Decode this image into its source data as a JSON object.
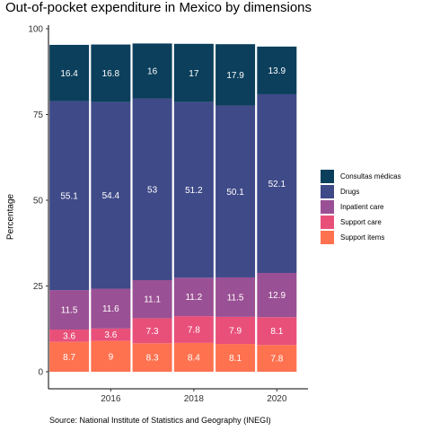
{
  "chart_data": {
    "type": "bar",
    "stacked": true,
    "title": "Out-of-pocket expenditure in Mexico by dimensions",
    "ylabel": "Percentage",
    "xlabel": "",
    "ylim": [
      0,
      100
    ],
    "yticks": [
      0,
      25,
      50,
      75,
      100
    ],
    "xticks": [
      2016,
      2018,
      2020
    ],
    "x": [
      2015,
      2016,
      2017,
      2018,
      2019,
      2020
    ],
    "grid": false,
    "legend_position": "right",
    "series": [
      {
        "name": "Support items",
        "color": "#ff7250",
        "values": [
          8.7,
          9,
          8.3,
          8.4,
          8.1,
          7.8
        ]
      },
      {
        "name": "Support care",
        "color": "#e8507a",
        "values": [
          3.6,
          3.6,
          7.3,
          7.8,
          7.9,
          8.1
        ]
      },
      {
        "name": "Inpatient care",
        "color": "#9a5094",
        "values": [
          11.5,
          11.6,
          11.1,
          11.2,
          11.5,
          12.9
        ]
      },
      {
        "name": "Drugs",
        "color": "#3f4a88",
        "values": [
          55.1,
          54.4,
          53,
          51.2,
          50.1,
          52.1
        ]
      },
      {
        "name": "Consultas médicas",
        "color": "#0b3f5c",
        "values": [
          16.4,
          16.8,
          16,
          17,
          17.9,
          13.9
        ]
      }
    ],
    "caption": "Source: National Institute of Statistics and Geography (INEGI)"
  }
}
